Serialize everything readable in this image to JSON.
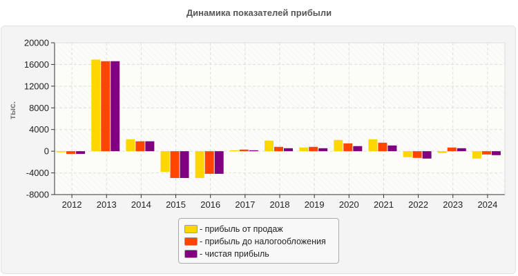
{
  "chart_data": {
    "type": "bar",
    "title": "Динамика показателей прибыли",
    "ylabel": "тыс.",
    "xlabel": "",
    "ylim": [
      -8000,
      20000
    ],
    "yticks": [
      "20000",
      "16000",
      "12000",
      "8000",
      "4000",
      "0",
      "-4000",
      "-8000"
    ],
    "grid": true,
    "legend_position": "bottom",
    "categories": [
      "2012",
      "2013",
      "2014",
      "2015",
      "2016",
      "2017",
      "2018",
      "2019",
      "2020",
      "2021",
      "2022",
      "2023",
      "2024"
    ],
    "series": [
      {
        "name": "- прибыль от продаж",
        "color": "#FFD700",
        "values": [
          -200,
          16900,
          2200,
          -3800,
          -4940,
          170,
          1960,
          680,
          2080,
          2200,
          -1100,
          -340,
          -1360
        ]
      },
      {
        "name": "- прибыль до налогообложения",
        "color": "#FF4500",
        "values": [
          -500,
          16600,
          1830,
          -4940,
          -4170,
          300,
          800,
          800,
          1450,
          1570,
          -1230,
          680,
          -600
        ]
      },
      {
        "name": "- чистая прибыль",
        "color": "#800080",
        "values": [
          -500,
          16600,
          1830,
          -4940,
          -4170,
          170,
          550,
          550,
          940,
          1060,
          -1360,
          550,
          -720
        ]
      }
    ]
  }
}
